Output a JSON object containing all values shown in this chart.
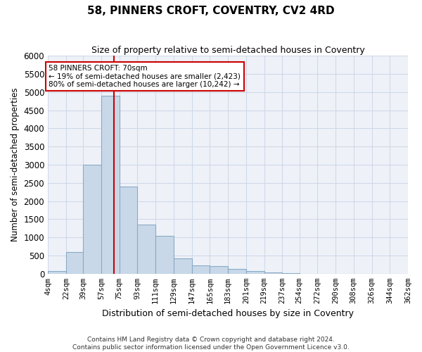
{
  "title": "58, PINNERS CROFT, COVENTRY, CV2 4RD",
  "subtitle": "Size of property relative to semi-detached houses in Coventry",
  "xlabel": "Distribution of semi-detached houses by size in Coventry",
  "ylabel": "Number of semi-detached properties",
  "footer_line1": "Contains HM Land Registry data © Crown copyright and database right 2024.",
  "footer_line2": "Contains public sector information licensed under the Open Government Licence v3.0.",
  "property_size": 70,
  "property_label": "58 PINNERS CROFT: 70sqm",
  "pct_smaller": 19,
  "n_smaller": 2423,
  "pct_larger": 80,
  "n_larger": 10242,
  "bar_color": "#c8d8e8",
  "bar_edge_color": "#8aaac8",
  "vline_color": "#cc0000",
  "annotation_box_edge": "#cc0000",
  "bin_edges": [
    4,
    22,
    39,
    57,
    75,
    93,
    111,
    129,
    147,
    165,
    183,
    201,
    219,
    237,
    254,
    272,
    290,
    308,
    326,
    344,
    362
  ],
  "bin_labels": [
    "4sqm",
    "22sqm",
    "39sqm",
    "57sqm",
    "75sqm",
    "93sqm",
    "111sqm",
    "129sqm",
    "147sqm",
    "165sqm",
    "183sqm",
    "201sqm",
    "219sqm",
    "237sqm",
    "254sqm",
    "272sqm",
    "290sqm",
    "308sqm",
    "326sqm",
    "344sqm",
    "362sqm"
  ],
  "counts": [
    75,
    600,
    3000,
    4900,
    2400,
    1350,
    1050,
    430,
    230,
    200,
    140,
    75,
    30,
    10,
    5,
    5,
    3,
    2,
    2,
    2
  ],
  "ylim": [
    0,
    6000
  ],
  "yticks": [
    0,
    500,
    1000,
    1500,
    2000,
    2500,
    3000,
    3500,
    4000,
    4500,
    5000,
    5500,
    6000
  ],
  "grid_color": "#d0d8e8",
  "bg_color": "#eef2f8"
}
